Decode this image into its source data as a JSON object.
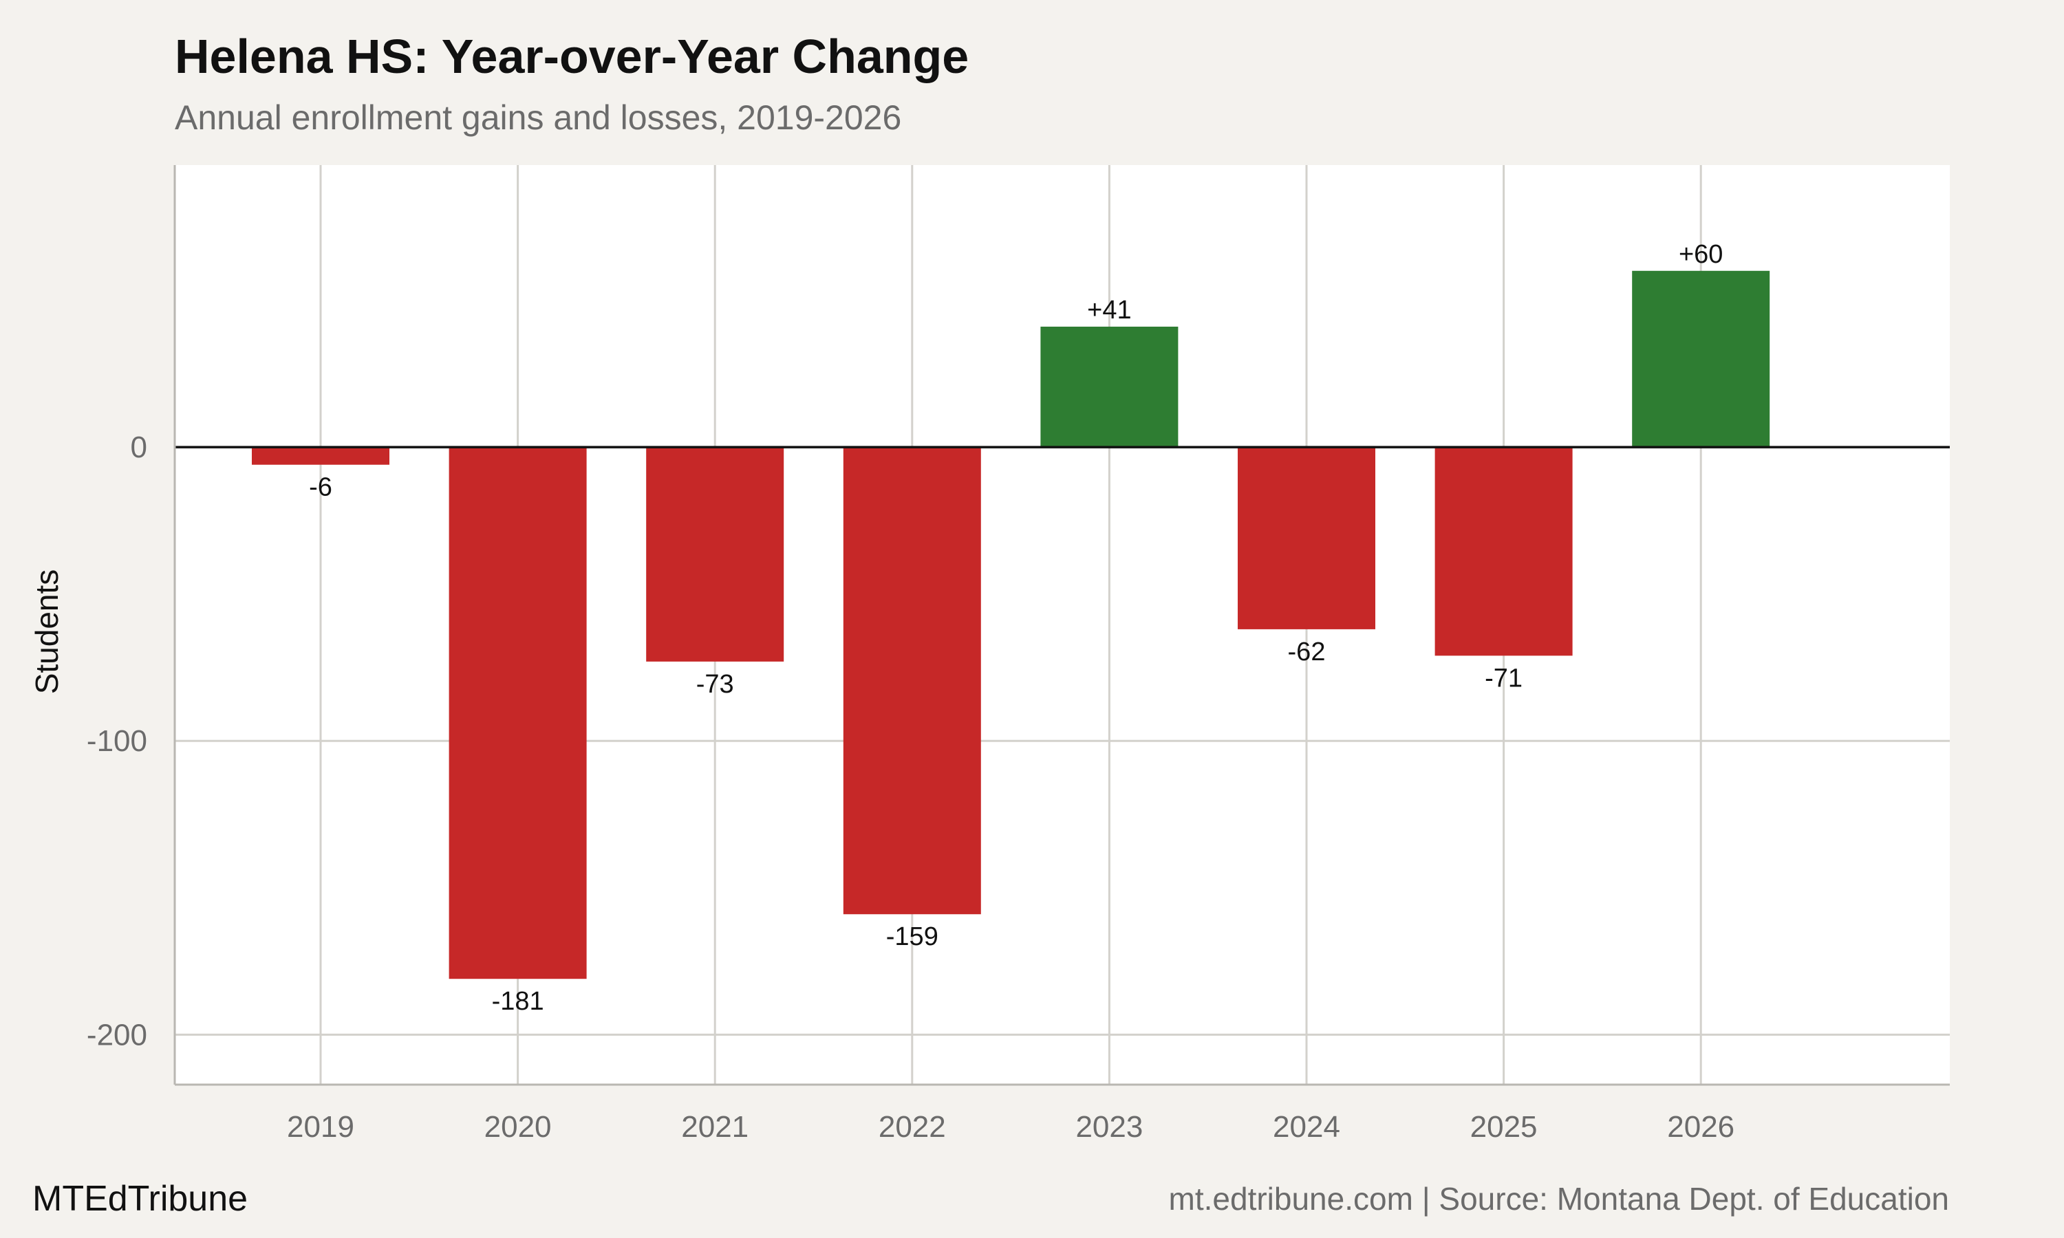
{
  "title": "Helena HS: Year-over-Year Change",
  "subtitle": "Annual enrollment gains and losses, 2019-2026",
  "footer": {
    "brand": "MTEdTribune",
    "source": "mt.edtribune.com | Source: Montana Dept. of Education"
  },
  "colors": {
    "gain": "#2e7d32",
    "loss": "#c62828",
    "background": "#f4f2ee",
    "panel": "#ffffff",
    "grid": "#d3d1cc"
  },
  "chart_data": {
    "type": "bar",
    "categories": [
      "2019",
      "2020",
      "2021",
      "2022",
      "2023",
      "2024",
      "2025",
      "2026"
    ],
    "values": [
      -6,
      -181,
      -73,
      -159,
      41,
      -62,
      -71,
      60
    ],
    "data_labels": [
      "-6",
      "-181",
      "-73",
      "-159",
      "+41",
      "-62",
      "-71",
      "+60"
    ],
    "ylabel": "Students",
    "xlabel": "",
    "yticks": [
      0,
      -100,
      -200
    ],
    "ytick_labels": [
      "0",
      "-100",
      "-200"
    ],
    "ylim": [
      -217,
      96
    ],
    "grid": true,
    "legend": "none"
  }
}
